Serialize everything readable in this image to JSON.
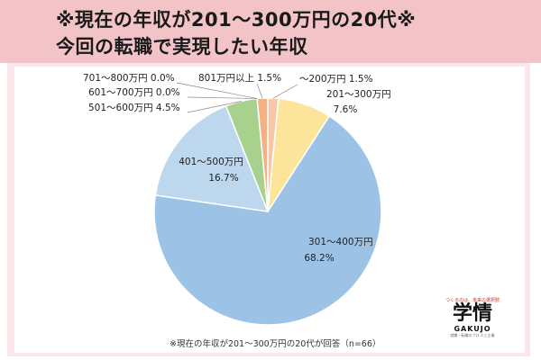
{
  "header": {
    "title_line1": "※現在の年収が201～300万円の20代※",
    "title_line2": "今回の転職で実現したい年収"
  },
  "footnote": "※現在の年収が201～300万円の20代が回答（n=66）",
  "logo": {
    "tagline": "つくるのは、未来の選択肢",
    "mark": "学情",
    "name": "GAKUJO",
    "subtext": "就職・転職のプロ 人と企業"
  },
  "colors": {
    "header_bg": "#f2c4c8",
    "frame_bg": "#fbe7ea"
  },
  "chart_data": {
    "type": "pie",
    "title": "",
    "slices": [
      {
        "name": "～200万円",
        "value": 1.5,
        "value_label": "1.5%",
        "color": "#f6c6a8"
      },
      {
        "name": "201～300万円",
        "value": 7.6,
        "value_label": "7.6%",
        "color": "#fce59a"
      },
      {
        "name": "301～400万円",
        "value": 68.2,
        "value_label": "68.2%",
        "color": "#9cc3e6"
      },
      {
        "name": "401～500万円",
        "value": 16.7,
        "value_label": "16.7%",
        "color": "#bdd7ee"
      },
      {
        "name": "501～600万円",
        "value": 4.5,
        "value_label": "4.5%",
        "color": "#a9d18e"
      },
      {
        "name": "601～700万円",
        "value": 0.0,
        "value_label": "0.0%",
        "color": "#c5e0b4"
      },
      {
        "name": "701～800万円",
        "value": 0.0,
        "value_label": "0.0%",
        "color": "#e2efd9"
      },
      {
        "name": "801万円以上",
        "value": 1.5,
        "value_label": "1.5%",
        "color": "#f4b183"
      }
    ],
    "start": "12 o'clock",
    "direction": "clockwise"
  }
}
